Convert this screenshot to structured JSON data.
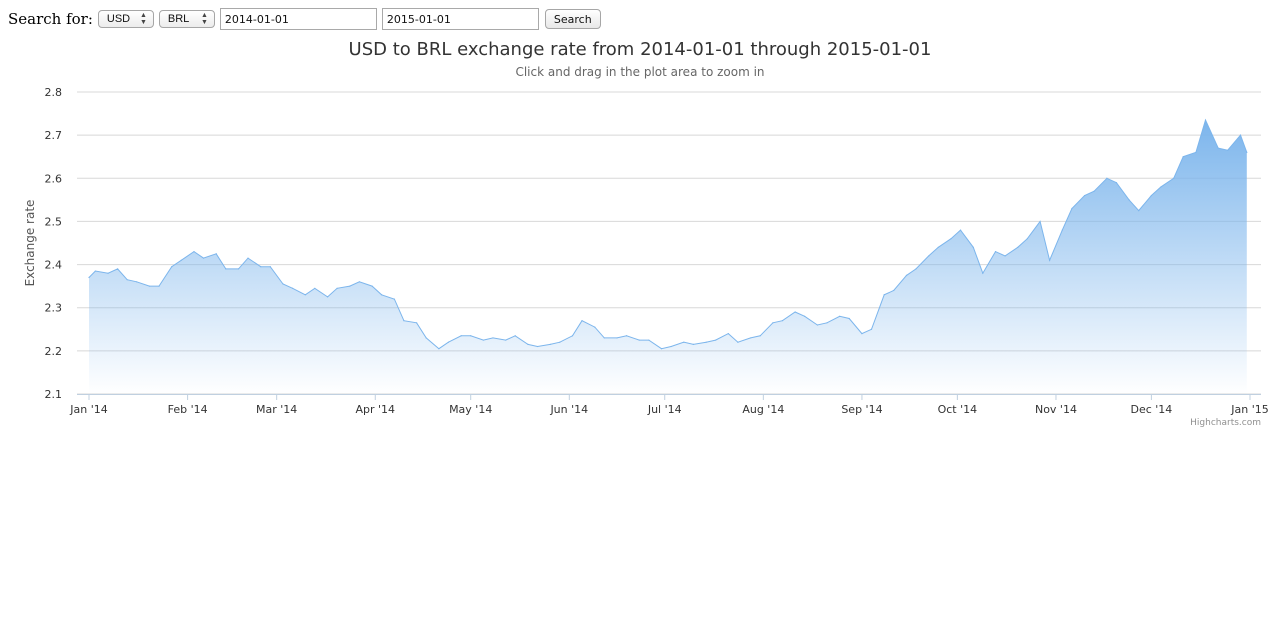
{
  "search": {
    "label": "Search for:",
    "from_currency": "USD",
    "to_currency": "BRL",
    "start_date": "2014-01-01",
    "end_date": "2015-01-01",
    "button_label": "Search"
  },
  "colors": {
    "series_line": "#7cb5ec",
    "gridline": "#d8d8d8"
  },
  "credits": "Highcharts.com",
  "chart_data": {
    "type": "area",
    "title": "USD to BRL exchange rate from 2014-01-01 through 2015-01-01",
    "subtitle": "Click and drag in the plot area to zoom in",
    "ylabel": "Exchange rate",
    "xlabel": "",
    "ylim": [
      2.1,
      2.8
    ],
    "yticks": [
      2.1,
      2.2,
      2.3,
      2.4,
      2.5,
      2.6,
      2.7,
      2.8
    ],
    "xlim": [
      "2014-01-01",
      "2015-01-01"
    ],
    "xticks": [
      {
        "date": "2014-01-01",
        "label": "Jan '14"
      },
      {
        "date": "2014-02-01",
        "label": "Feb '14"
      },
      {
        "date": "2014-03-01",
        "label": "Mar '14"
      },
      {
        "date": "2014-04-01",
        "label": "Apr '14"
      },
      {
        "date": "2014-05-01",
        "label": "May '14"
      },
      {
        "date": "2014-06-01",
        "label": "Jun '14"
      },
      {
        "date": "2014-07-01",
        "label": "Jul '14"
      },
      {
        "date": "2014-08-01",
        "label": "Aug '14"
      },
      {
        "date": "2014-09-01",
        "label": "Sep '14"
      },
      {
        "date": "2014-10-01",
        "label": "Oct '14"
      },
      {
        "date": "2014-11-01",
        "label": "Nov '14"
      },
      {
        "date": "2014-12-01",
        "label": "Dec '14"
      },
      {
        "date": "2015-01-01",
        "label": "Jan '15"
      }
    ],
    "grid": true,
    "legend": "none",
    "series": [
      {
        "x": [
          "2014-01-01",
          "2014-01-03",
          "2014-01-07",
          "2014-01-10",
          "2014-01-13",
          "2014-01-16",
          "2014-01-20",
          "2014-01-23",
          "2014-01-27",
          "2014-01-30",
          "2014-02-03",
          "2014-02-06",
          "2014-02-10",
          "2014-02-13",
          "2014-02-17",
          "2014-02-20",
          "2014-02-24",
          "2014-02-27",
          "2014-03-03",
          "2014-03-06",
          "2014-03-10",
          "2014-03-13",
          "2014-03-17",
          "2014-03-20",
          "2014-03-24",
          "2014-03-27",
          "2014-03-31",
          "2014-04-03",
          "2014-04-07",
          "2014-04-10",
          "2014-04-14",
          "2014-04-17",
          "2014-04-21",
          "2014-04-24",
          "2014-04-28",
          "2014-05-01",
          "2014-05-05",
          "2014-05-08",
          "2014-05-12",
          "2014-05-15",
          "2014-05-19",
          "2014-05-22",
          "2014-05-26",
          "2014-05-29",
          "2014-06-02",
          "2014-06-05",
          "2014-06-09",
          "2014-06-12",
          "2014-06-16",
          "2014-06-19",
          "2014-06-23",
          "2014-06-26",
          "2014-06-30",
          "2014-07-03",
          "2014-07-07",
          "2014-07-10",
          "2014-07-14",
          "2014-07-17",
          "2014-07-21",
          "2014-07-24",
          "2014-07-28",
          "2014-07-31",
          "2014-08-04",
          "2014-08-07",
          "2014-08-11",
          "2014-08-14",
          "2014-08-18",
          "2014-08-21",
          "2014-08-25",
          "2014-08-28",
          "2014-09-01",
          "2014-09-04",
          "2014-09-08",
          "2014-09-11",
          "2014-09-15",
          "2014-09-18",
          "2014-09-22",
          "2014-09-25",
          "2014-09-29",
          "2014-10-02",
          "2014-10-06",
          "2014-10-09",
          "2014-10-13",
          "2014-10-16",
          "2014-10-20",
          "2014-10-23",
          "2014-10-27",
          "2014-10-30",
          "2014-11-03",
          "2014-11-06",
          "2014-11-10",
          "2014-11-13",
          "2014-11-17",
          "2014-11-20",
          "2014-11-24",
          "2014-11-27",
          "2014-12-01",
          "2014-12-04",
          "2014-12-08",
          "2014-12-11",
          "2014-12-15",
          "2014-12-18",
          "2014-12-22",
          "2014-12-25",
          "2014-12-29",
          "2014-12-31"
        ],
        "values": [
          2.37,
          2.385,
          2.38,
          2.39,
          2.365,
          2.36,
          2.35,
          2.35,
          2.395,
          2.41,
          2.43,
          2.415,
          2.425,
          2.39,
          2.39,
          2.415,
          2.395,
          2.395,
          2.355,
          2.345,
          2.33,
          2.345,
          2.325,
          2.345,
          2.35,
          2.36,
          2.35,
          2.33,
          2.32,
          2.27,
          2.265,
          2.23,
          2.205,
          2.22,
          2.235,
          2.235,
          2.225,
          2.23,
          2.225,
          2.235,
          2.215,
          2.21,
          2.215,
          2.22,
          2.235,
          2.27,
          2.255,
          2.23,
          2.23,
          2.235,
          2.225,
          2.225,
          2.205,
          2.21,
          2.22,
          2.215,
          2.22,
          2.225,
          2.24,
          2.22,
          2.23,
          2.235,
          2.265,
          2.27,
          2.29,
          2.28,
          2.26,
          2.265,
          2.28,
          2.275,
          2.24,
          2.25,
          2.33,
          2.34,
          2.375,
          2.39,
          2.42,
          2.44,
          2.46,
          2.48,
          2.44,
          2.38,
          2.43,
          2.42,
          2.44,
          2.46,
          2.5,
          2.41,
          2.48,
          2.53,
          2.56,
          2.57,
          2.6,
          2.59,
          2.55,
          2.525,
          2.56,
          2.58,
          2.6,
          2.65,
          2.66,
          2.735,
          2.67,
          2.665,
          2.7,
          2.66
        ]
      }
    ]
  }
}
